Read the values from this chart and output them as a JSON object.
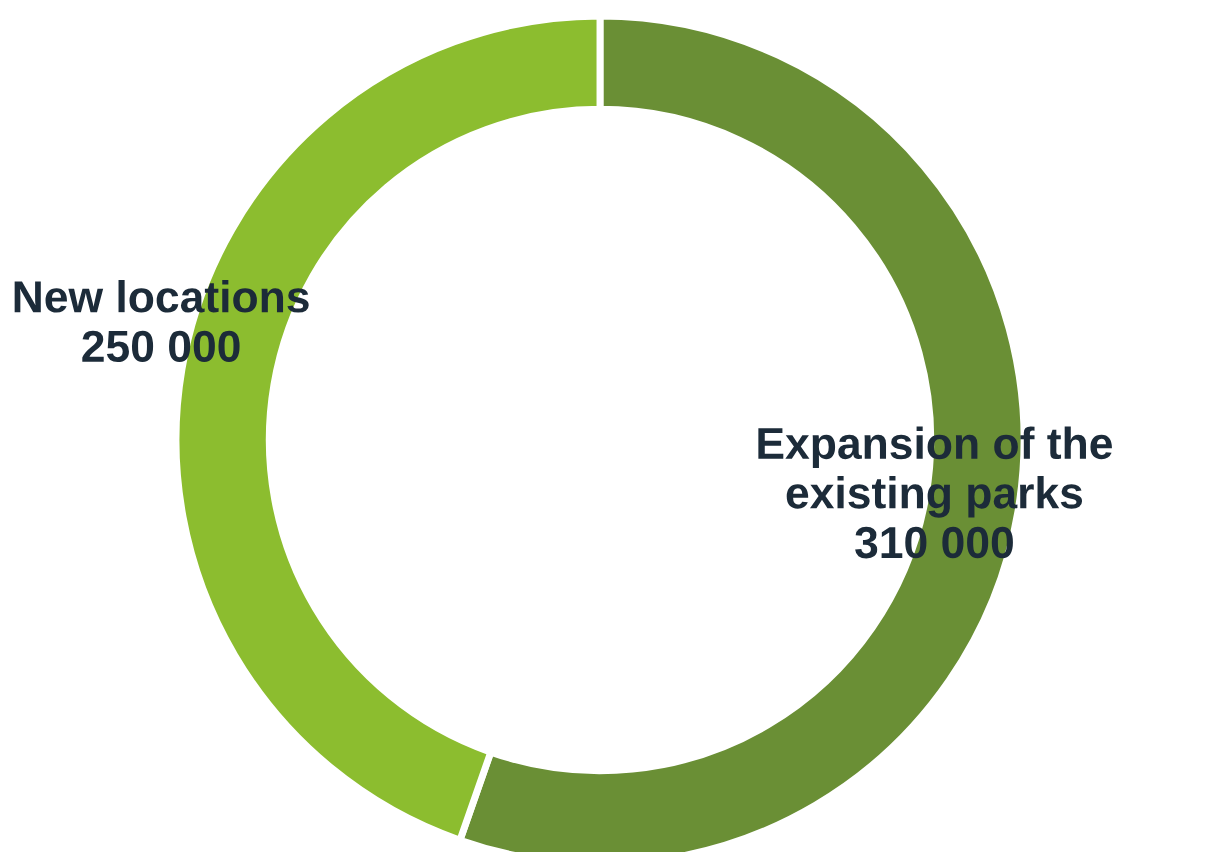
{
  "chart_data": {
    "type": "donut",
    "categories": [
      "Expansion of the\nexisting parks",
      "New locations"
    ],
    "values": [
      310000,
      250000
    ],
    "value_labels": [
      "310 000",
      "250 000"
    ],
    "colors": [
      "#6a8f35",
      "#8cbd2f"
    ]
  }
}
